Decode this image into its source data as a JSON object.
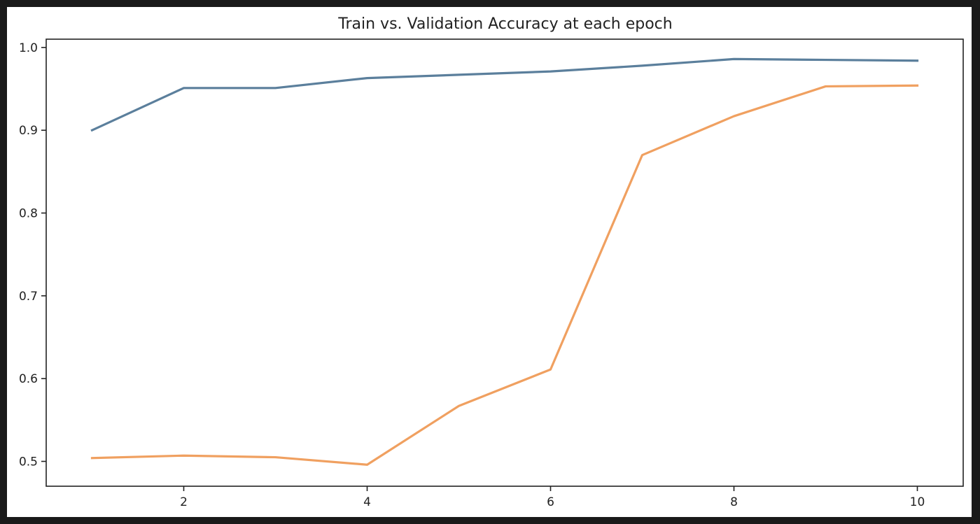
{
  "chart_data": {
    "type": "line",
    "title": "Train vs. Validation Accuracy at each epoch",
    "xlabel": "",
    "ylabel": "",
    "x": [
      1,
      2,
      3,
      4,
      5,
      6,
      7,
      8,
      9,
      10
    ],
    "xlim": [
      0.5,
      10.5
    ],
    "ylim": [
      0.47,
      1.01
    ],
    "xticks": [
      2,
      4,
      6,
      8,
      10
    ],
    "xtick_labels": [
      "2",
      "4",
      "6",
      "8",
      "10"
    ],
    "yticks": [
      0.5,
      0.6,
      0.7,
      0.8,
      0.9,
      1.0
    ],
    "ytick_labels": [
      "0.5",
      "0.6",
      "0.7",
      "0.8",
      "0.9",
      "1.0"
    ],
    "grid": false,
    "legend": "none",
    "series": [
      {
        "color": "#5b7f9c",
        "values": [
          0.9,
          0.951,
          0.951,
          0.963,
          0.967,
          0.971,
          0.978,
          0.986,
          0.985,
          0.984
        ]
      },
      {
        "color": "#f0a060",
        "values": [
          0.504,
          0.507,
          0.505,
          0.496,
          0.567,
          0.611,
          0.87,
          0.917,
          0.953,
          0.954
        ]
      }
    ]
  }
}
